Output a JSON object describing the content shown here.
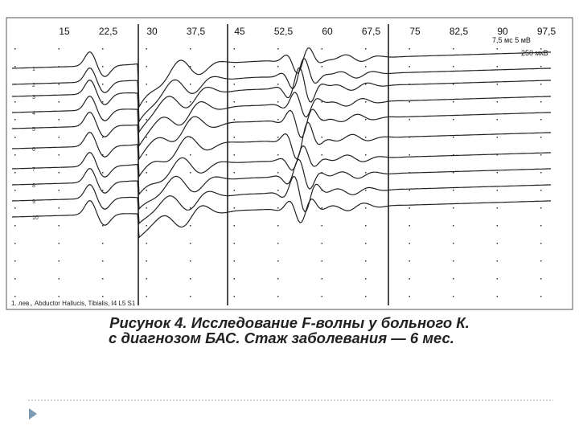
{
  "figure": {
    "time_labels": [
      "15",
      "22,5",
      "30",
      "37,5",
      "45",
      "52,5",
      "60",
      "67,5",
      "75",
      "82,5",
      "90",
      "97,5"
    ],
    "scale_labels": [
      "7,5 мс 5 мВ",
      "250 мкВ"
    ],
    "trace_numbers": [
      "1",
      "2",
      "3",
      "4",
      "5",
      "6",
      "7",
      "8",
      "9",
      "10"
    ],
    "footer": "1. лев., Abductor Hallucis, Tibialis, I4 L5 S1"
  },
  "caption": {
    "line1": "Рисунок 4. Исследование F-волны у больного К.",
    "line2": "с диагнозом БАС. Стаж заболевания — 6 мес."
  }
}
